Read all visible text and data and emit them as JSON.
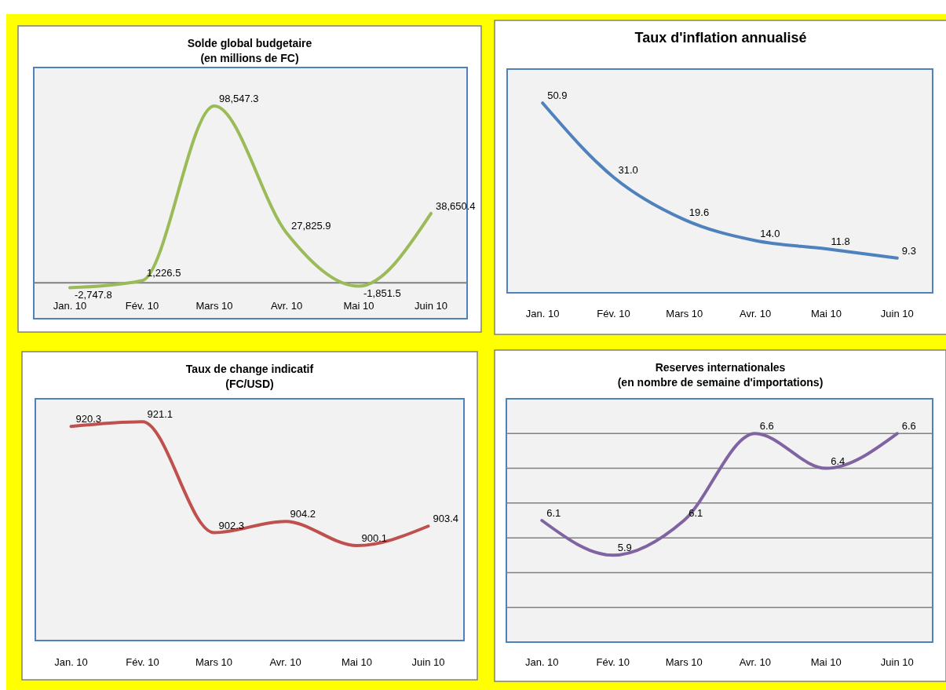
{
  "chart_data": [
    {
      "type": "line",
      "title": "Solde global budgetaire\n(en millions de FC)",
      "categories": [
        "Jan. 10",
        "Fév. 10",
        "Mars 10",
        "Avr. 10",
        "Mai 10",
        "Juin 10"
      ],
      "series": [
        {
          "color": "#9bbb59",
          "values": [
            -2747.8,
            1226.5,
            98547.3,
            27825.9,
            -1851.5,
            38650.4
          ],
          "value_labels": [
            "-2,747.8",
            "1,226.5",
            "98,547.3",
            "27,825.9",
            "-1,851.5",
            "38,650.4"
          ]
        }
      ],
      "ylim": [
        -20000,
        120000
      ],
      "tick_labels": "x",
      "ref_lines": [
        {
          "axis": "y",
          "value": 0,
          "color": "#808080"
        }
      ]
    },
    {
      "type": "line",
      "title": "Taux d'inflation annualisé",
      "categories": [
        "Jan. 10",
        "Fév. 10",
        "Mars 10",
        "Avr. 10",
        "Mai 10",
        "Juin 10"
      ],
      "series": [
        {
          "color": "#4f81bd",
          "values": [
            50.9,
            31.0,
            19.6,
            14.0,
            11.8,
            9.3
          ],
          "value_labels": [
            "50.9",
            "31.0",
            "19.6",
            "14.0",
            "11.8",
            "9.3"
          ]
        }
      ],
      "ylim": [
        0,
        60
      ],
      "tick_labels": "x"
    },
    {
      "type": "line",
      "title": "Taux de change indicatif\n(FC/USD)",
      "categories": [
        "Jan. 10",
        "Fév. 10",
        "Mars 10",
        "Avr. 10",
        "Mai 10",
        "Juin 10"
      ],
      "series": [
        {
          "color": "#c0504d",
          "values": [
            920.3,
            921.1,
            902.3,
            904.2,
            900.1,
            903.4
          ],
          "value_labels": [
            "920.3",
            "921.1",
            "902.3",
            "904.2",
            "900.1",
            "903.4"
          ]
        }
      ],
      "ylim": [
        884,
        925
      ],
      "tick_labels": "x"
    },
    {
      "type": "line",
      "title": "Reserves internationales\n(en nombre de semaine d'importations)",
      "categories": [
        "Jan. 10",
        "Fév. 10",
        "Mars 10",
        "Avr. 10",
        "Mai 10",
        "Juin 10"
      ],
      "series": [
        {
          "color": "#8064a2",
          "values": [
            6.1,
            5.9,
            6.1,
            6.6,
            6.4,
            6.6
          ],
          "value_labels": [
            "6.1",
            "5.9",
            "6.1",
            "6.6",
            "6.4",
            "6.6"
          ]
        }
      ],
      "ylim": [
        5.4,
        6.8
      ],
      "yticks": [
        {
          "value": 5.6,
          "label": null
        },
        {
          "value": 5.8,
          "label": null
        },
        {
          "value": 6.0,
          "label": null
        },
        {
          "value": 6.2,
          "label": null
        },
        {
          "value": 6.4,
          "label": null
        },
        {
          "value": 6.6,
          "label": null
        }
      ],
      "grid": "y",
      "tick_labels": "x"
    }
  ]
}
